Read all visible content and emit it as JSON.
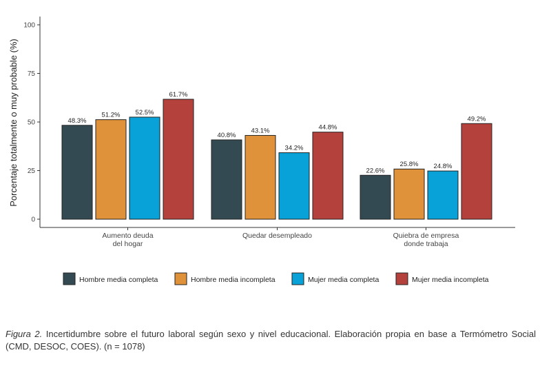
{
  "chart_data": {
    "type": "bar",
    "ylabel": "Porcentaje totalmente o muy probable (%)",
    "xlabel": "",
    "ylim": [
      0,
      100
    ],
    "yticks": [
      "0",
      "25",
      "50",
      "75",
      "100"
    ],
    "categories": [
      [
        "Aumento deuda",
        "del hogar"
      ],
      [
        "Quedar desempleado"
      ],
      [
        "Quiebra de empresa",
        "donde trabaja"
      ]
    ],
    "series": [
      {
        "name": "Hombre media completa",
        "color": "#344a52",
        "values": [
          48.3,
          40.8,
          22.6
        ],
        "labels": [
          "48.3%",
          "40.8%",
          "22.6%"
        ]
      },
      {
        "name": "Hombre media incompleta",
        "color": "#e0923a",
        "values": [
          51.2,
          43.1,
          25.8
        ],
        "labels": [
          "51.2%",
          "43.1%",
          "25.8%"
        ]
      },
      {
        "name": "Mujer media completa",
        "color": "#08a2d8",
        "values": [
          52.5,
          34.2,
          24.8
        ],
        "labels": [
          "52.5%",
          "34.2%",
          "24.8%"
        ]
      },
      {
        "name": "Mujer media incompleta",
        "color": "#b5413c",
        "values": [
          61.7,
          44.8,
          49.2
        ],
        "labels": [
          "61.7%",
          "44.8%",
          "49.2%"
        ]
      }
    ],
    "legend_position": "bottom",
    "grid": false
  },
  "caption": {
    "figure_label": "Figura 2.",
    "text": " Incertidumbre sobre el futuro laboral según sexo y nivel educacional. Elaboración propia en base a Termómetro Social (CMD, DESOC, COES). (n = 1078)"
  }
}
